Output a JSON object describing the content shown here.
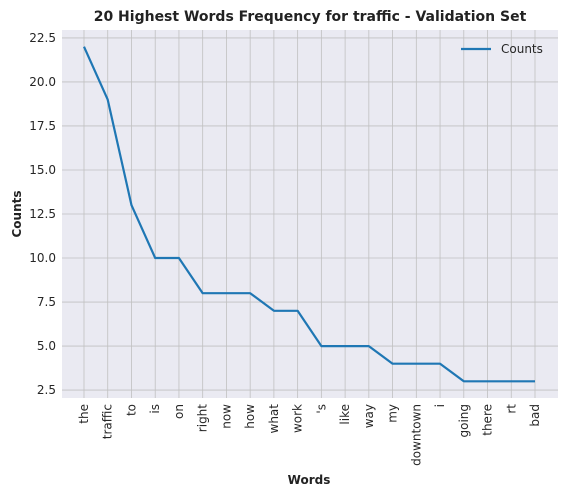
{
  "chart_data": {
    "type": "line",
    "title": "20 Highest Words Frequency for traffic - Validation Set",
    "xlabel": "Words",
    "ylabel": "Counts",
    "categories": [
      "the",
      "traffic",
      "to",
      "is",
      "on",
      "right",
      "now",
      "how",
      "what",
      "work",
      "'s",
      "like",
      "way",
      "my",
      "downtown",
      "i",
      "going",
      "there",
      "rt",
      "bad"
    ],
    "series": [
      {
        "name": "Counts",
        "values": [
          22,
          19,
          13,
          10,
          10,
          8,
          8,
          8,
          7,
          7,
          5,
          5,
          5,
          4,
          4,
          4,
          3,
          3,
          3,
          3
        ]
      }
    ],
    "ylim": [
      2.05,
      22.95
    ],
    "yticks": [
      "2.5",
      "5.0",
      "7.5",
      "10.0",
      "12.5",
      "15.0",
      "17.5",
      "20.0",
      "22.5"
    ],
    "grid": true,
    "legend_position": "top-right",
    "colors": {
      "line": "#1f77b4",
      "plot_bg": "#eaeaf2",
      "grid": "#c0c0c0"
    }
  }
}
